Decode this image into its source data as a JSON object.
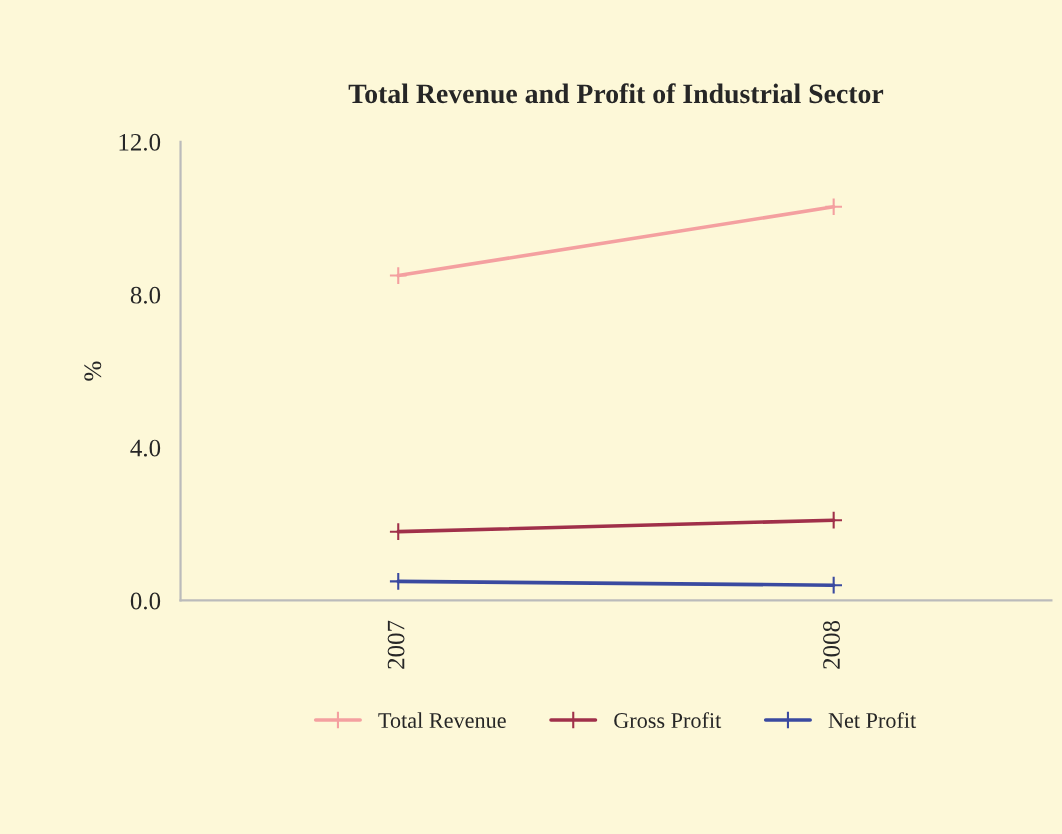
{
  "chart_data": {
    "type": "line",
    "title": "Total Revenue and Profit of Industrial Sector",
    "ylabel": "%",
    "categories": [
      "2007",
      "2008"
    ],
    "series": [
      {
        "name": "Total Revenue",
        "color": "#f4a0a0",
        "values": [
          8.5,
          10.3
        ]
      },
      {
        "name": "Gross Profit",
        "color": "#a0304a",
        "values": [
          1.8,
          2.1
        ]
      },
      {
        "name": "Net Profit",
        "color": "#3a4aa0",
        "values": [
          0.5,
          0.4
        ]
      }
    ],
    "ylim": [
      0,
      12
    ],
    "yticks": [
      {
        "value": 0,
        "label": "0.0"
      },
      {
        "value": 4,
        "label": "4.0"
      },
      {
        "value": 8,
        "label": "8.0"
      },
      {
        "value": 12,
        "label": "12.0"
      }
    ],
    "grid": false,
    "legend": "bottom",
    "marker": "cross",
    "line_style": "solid"
  }
}
